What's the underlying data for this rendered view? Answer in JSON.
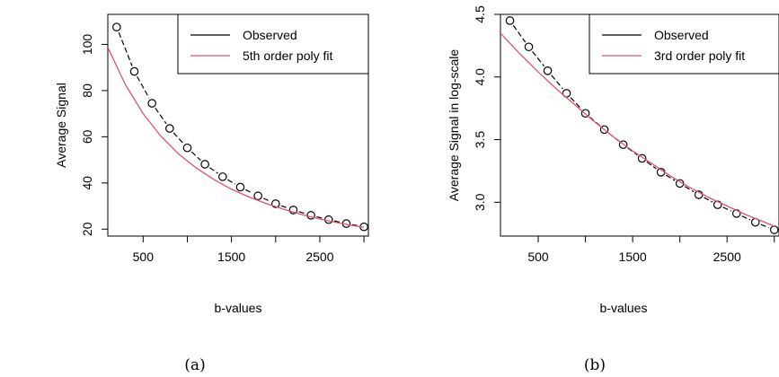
{
  "chart_data": [
    {
      "type": "line",
      "panel": "(a)",
      "xlabel": "b-values",
      "ylabel": "Average Signal",
      "xlim": [
        100,
        3050
      ],
      "ylim": [
        17,
        113
      ],
      "xticks": [
        500,
        1500,
        2500
      ],
      "xtick_minor": [
        1000,
        2000,
        3000
      ],
      "yticks": [
        20,
        40,
        60,
        80,
        100
      ],
      "legend_position": "top-right",
      "series": [
        {
          "name": "Observed",
          "style": "dashed-line-with-circles",
          "color": "#000000",
          "x": [
            200,
            400,
            600,
            800,
            1000,
            1200,
            1400,
            1600,
            1800,
            2000,
            2200,
            2400,
            2600,
            2800,
            3000
          ],
          "y": [
            107.5,
            88.3,
            74.5,
            63.6,
            55.2,
            48.1,
            42.7,
            38.2,
            34.4,
            31.0,
            28.3,
            26.0,
            24.1,
            22.4,
            21.0
          ]
        },
        {
          "name": "5th order poly fit",
          "style": "solid-line",
          "color": "#df536b",
          "x": [
            100,
            300,
            500,
            700,
            900,
            1100,
            1300,
            1500,
            1700,
            1900,
            2100,
            2300,
            2500,
            2700,
            2900,
            3000
          ],
          "y": [
            98.7,
            82.5,
            70.0,
            60.3,
            52.6,
            46.5,
            41.5,
            37.3,
            33.9,
            31.0,
            28.5,
            26.3,
            24.4,
            22.8,
            21.4,
            20.8
          ]
        }
      ]
    },
    {
      "type": "line",
      "panel": "(b)",
      "xlabel": "b-values",
      "ylabel": "Average Signal in log-scale",
      "xlim": [
        100,
        3050
      ],
      "ylim": [
        2.73,
        4.5
      ],
      "xticks": [
        500,
        1500,
        2500
      ],
      "xtick_minor": [
        1000,
        2000,
        3000
      ],
      "yticks": [
        "3.0",
        "3.5",
        "4.0",
        "4.5"
      ],
      "legend_position": "top-right",
      "series": [
        {
          "name": "Observed",
          "style": "dashed-line-with-circles",
          "color": "#000000",
          "x": [
            200,
            400,
            600,
            800,
            1000,
            1200,
            1400,
            1600,
            1800,
            2000,
            2200,
            2400,
            2600,
            2800,
            3000
          ],
          "y": [
            4.45,
            4.24,
            4.05,
            3.87,
            3.71,
            3.58,
            3.46,
            3.35,
            3.24,
            3.15,
            3.06,
            2.98,
            2.91,
            2.84,
            2.78
          ]
        },
        {
          "name": "3rd order poly fit",
          "style": "solid-line",
          "color": "#df536b",
          "x": [
            100,
            300,
            500,
            700,
            900,
            1100,
            1300,
            1500,
            1700,
            1900,
            2100,
            2300,
            2500,
            2700,
            2900,
            3000
          ],
          "y": [
            4.35,
            4.19,
            4.04,
            3.9,
            3.77,
            3.64,
            3.52,
            3.41,
            3.31,
            3.21,
            3.12,
            3.04,
            2.97,
            2.9,
            2.84,
            2.81
          ]
        }
      ]
    }
  ]
}
